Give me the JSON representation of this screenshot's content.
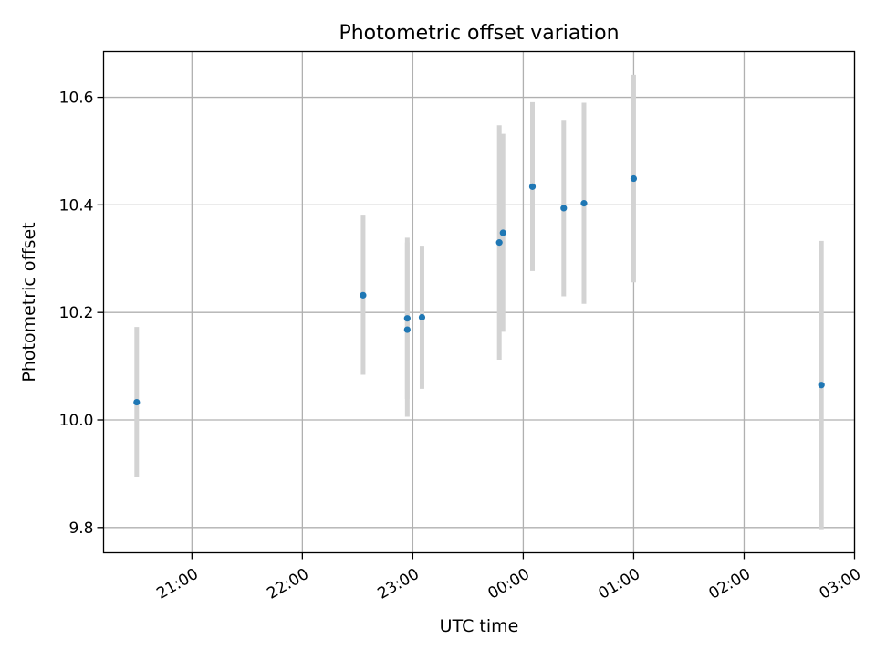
{
  "chart_data": {
    "type": "scatter",
    "title": "Photometric offset variation",
    "xlabel": "UTC time",
    "ylabel": "Photometric offset",
    "x_axis": {
      "kind": "time",
      "range": [
        "20:12",
        "03:00"
      ],
      "ticks": [
        "21:00",
        "22:00",
        "23:00",
        "00:00",
        "01:00",
        "02:00",
        "03:00"
      ]
    },
    "y_axis": {
      "range": [
        9.753,
        10.685
      ],
      "ticks": [
        "9.8",
        "10.0",
        "10.2",
        "10.4",
        "10.6"
      ]
    },
    "grid": true,
    "colors": {
      "point": "#1f77b4",
      "errorbar": "#d3d3d3",
      "grid": "#b0b0b0"
    },
    "series": [
      {
        "points": [
          {
            "time": "20:30",
            "y": 10.033,
            "yerr": 0.14
          },
          {
            "time": "22:33",
            "y": 10.232,
            "yerr": 0.148
          },
          {
            "time": "22:57",
            "y": 10.189,
            "yerr": 0.15
          },
          {
            "time": "22:57",
            "y": 10.168,
            "yerr": 0.162
          },
          {
            "time": "23:05",
            "y": 10.191,
            "yerr": 0.133
          },
          {
            "time": "23:47",
            "y": 10.33,
            "yerr": 0.218
          },
          {
            "time": "23:49",
            "y": 10.348,
            "yerr": 0.184
          },
          {
            "time": "00:05",
            "y": 10.434,
            "yerr": 0.157
          },
          {
            "time": "00:22",
            "y": 10.394,
            "yerr": 0.164
          },
          {
            "time": "00:33",
            "y": 10.403,
            "yerr": 0.187
          },
          {
            "time": "01:00",
            "y": 10.449,
            "yerr": 0.193
          },
          {
            "time": "02:42",
            "y": 10.065,
            "yerr": 0.268
          }
        ]
      }
    ]
  }
}
